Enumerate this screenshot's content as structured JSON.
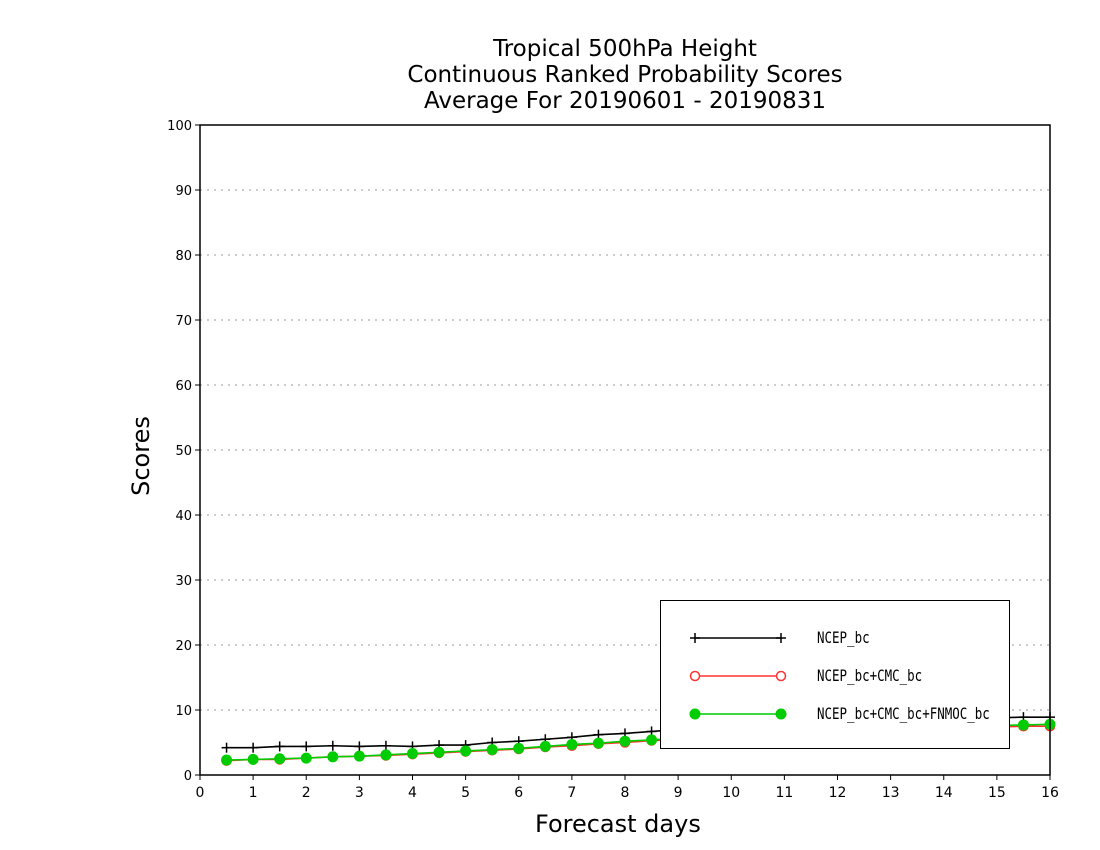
{
  "chart": {
    "title_lines": [
      "Tropical 500hPa Height",
      "Continuous Ranked Probability Scores",
      "Average For 20190601 - 20190831"
    ]
  },
  "chart_data": {
    "type": "line",
    "title": "Tropical 500hPa Height Continuous Ranked Probability Scores Average For 20190601 - 20190831",
    "xlabel": "Forecast days",
    "ylabel": "Scores",
    "xlim": [
      0,
      16
    ],
    "ylim": [
      0,
      100
    ],
    "xticks": [
      0,
      1,
      2,
      3,
      4,
      5,
      6,
      7,
      8,
      9,
      10,
      11,
      12,
      13,
      14,
      15,
      16
    ],
    "yticks": [
      0,
      10,
      20,
      30,
      40,
      50,
      60,
      70,
      80,
      90,
      100
    ],
    "grid": "horizontal dotted",
    "legend_position": "bottom-right",
    "x": [
      0.5,
      1,
      1.5,
      2,
      2.5,
      3,
      3.5,
      4,
      4.5,
      5,
      5.5,
      6,
      6.5,
      7,
      7.5,
      8,
      8.5,
      9,
      9.5,
      10,
      10.5,
      11,
      11.5,
      12,
      12.5,
      13,
      13.5,
      14,
      14.5,
      15,
      15.5,
      16
    ],
    "series": [
      {
        "name": "NCEP_bc",
        "color": "#000000",
        "marker": "plus",
        "values": [
          4.2,
          4.2,
          4.4,
          4.4,
          4.5,
          4.4,
          4.5,
          4.4,
          4.6,
          4.6,
          5.0,
          5.2,
          5.5,
          5.8,
          6.2,
          6.4,
          6.7,
          7.0,
          7.3,
          7.5,
          7.7,
          7.9,
          8.0,
          8.1,
          8.2,
          8.3,
          8.5,
          8.6,
          8.7,
          8.8,
          8.9,
          8.9
        ]
      },
      {
        "name": "NCEP_bc+CMC_bc",
        "color": "#ff3333",
        "marker": "circle-open",
        "values": [
          2.2,
          2.4,
          2.4,
          2.6,
          2.8,
          2.9,
          3.0,
          3.2,
          3.4,
          3.6,
          3.8,
          4.0,
          4.3,
          4.5,
          4.8,
          5.0,
          5.3,
          5.5,
          5.8,
          6.0,
          6.2,
          6.4,
          6.6,
          6.8,
          6.9,
          7.0,
          7.1,
          7.2,
          7.3,
          7.4,
          7.5,
          7.5
        ]
      },
      {
        "name": "NCEP_bc+CMC_bc+FNMOC_bc",
        "color": "#00cc00",
        "marker": "circle-filled",
        "values": [
          2.3,
          2.4,
          2.5,
          2.6,
          2.8,
          2.9,
          3.1,
          3.3,
          3.5,
          3.7,
          3.9,
          4.1,
          4.4,
          4.7,
          4.9,
          5.2,
          5.4,
          5.7,
          5.9,
          6.1,
          6.3,
          6.5,
          6.7,
          6.9,
          7.0,
          7.2,
          7.3,
          7.4,
          7.5,
          7.6,
          7.7,
          7.8
        ]
      }
    ]
  }
}
